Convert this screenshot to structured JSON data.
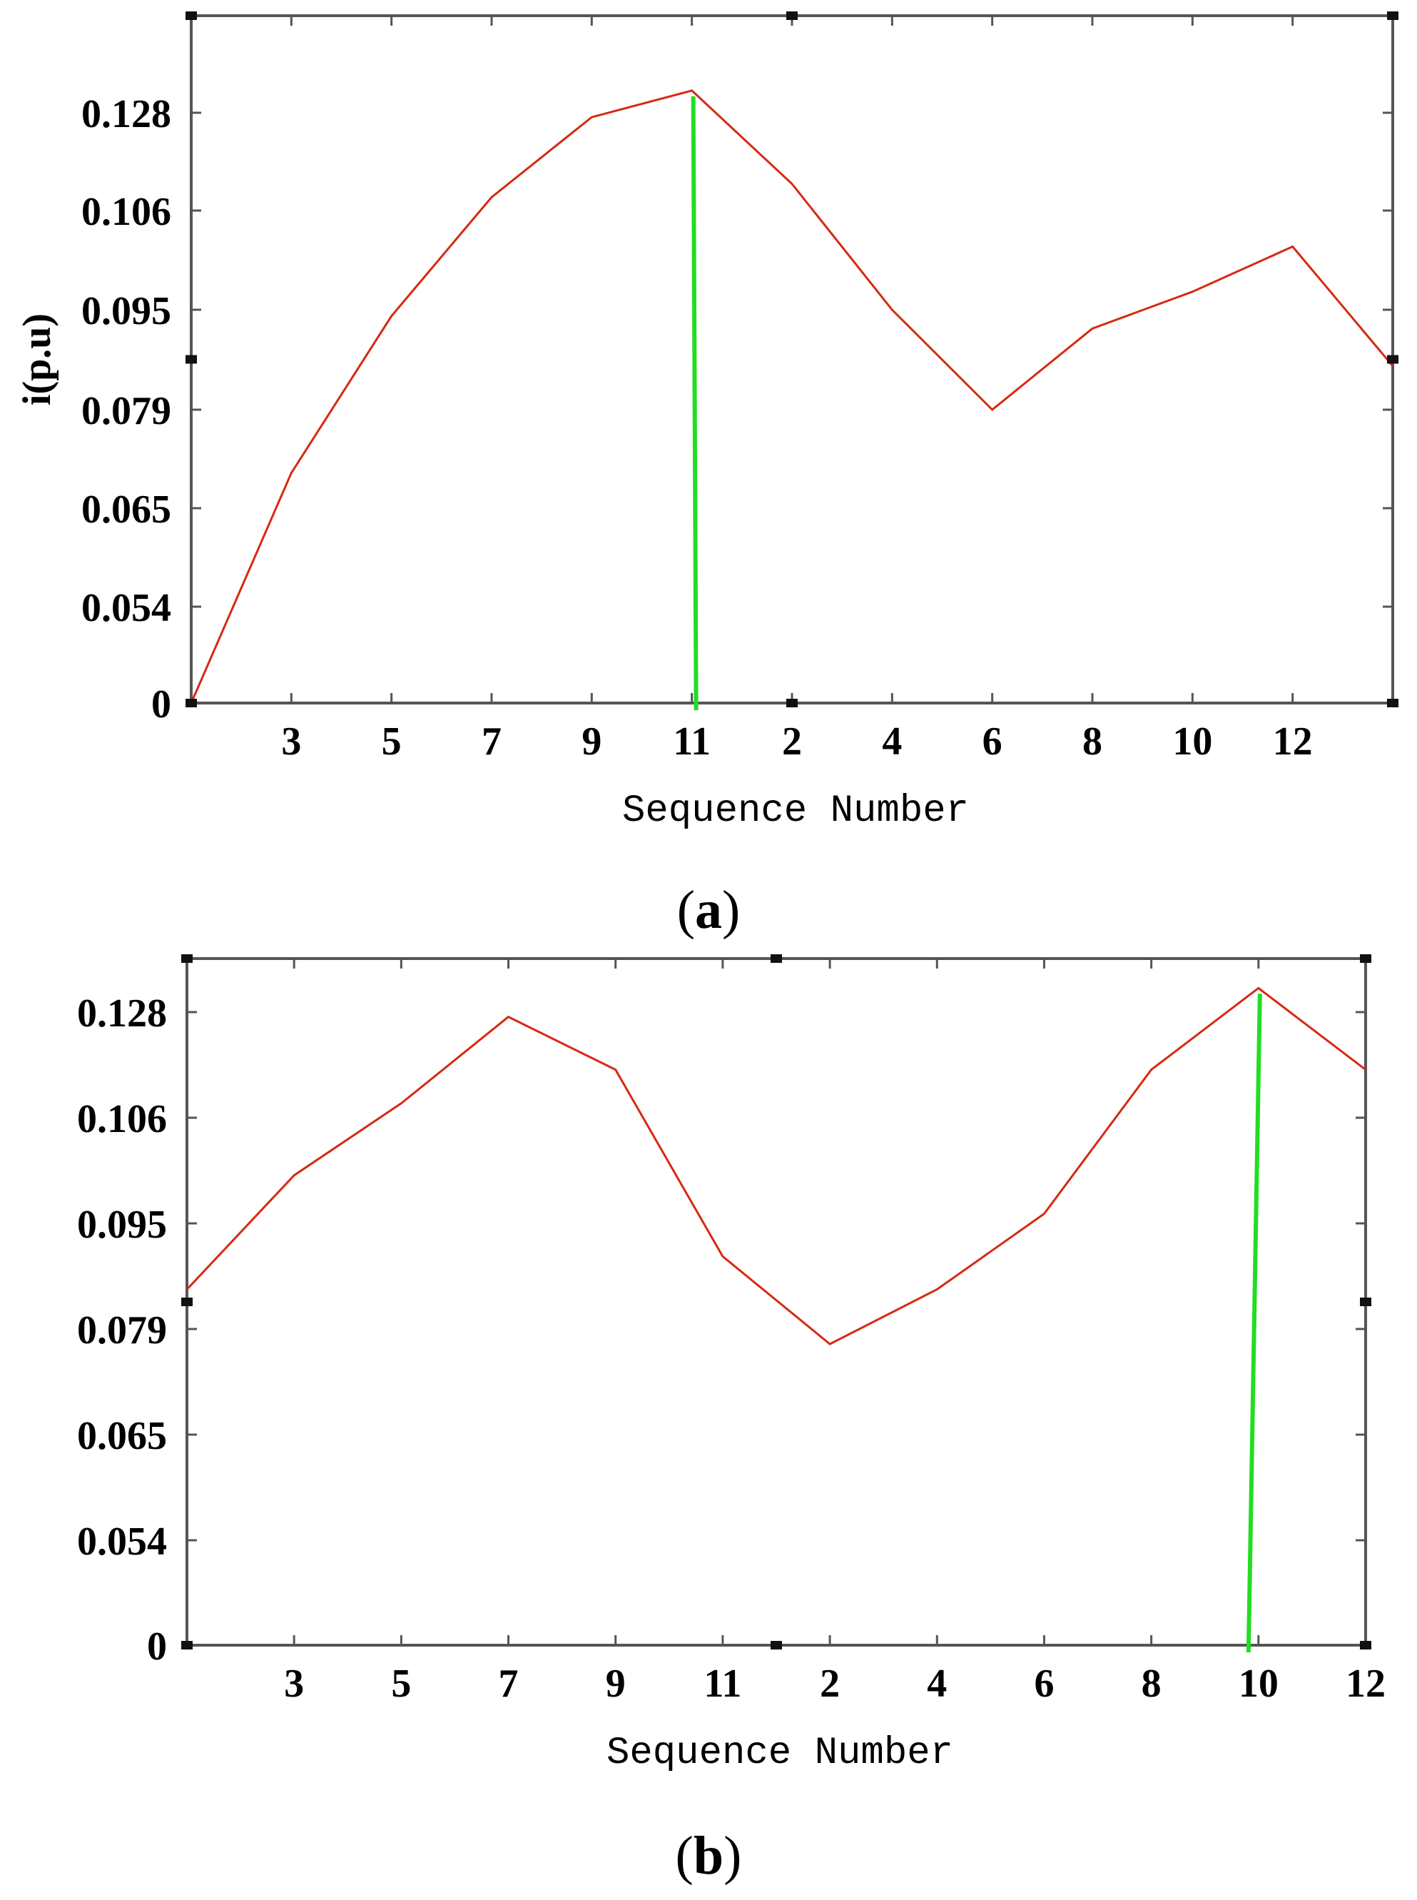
{
  "chart_data": [
    {
      "type": "line",
      "panel_label_open": "(",
      "panel_label_letter": "a",
      "panel_label_close": ")",
      "xlabel": "Sequence Number",
      "ylabel": "i(p.u)",
      "x_tick_labels": [
        "3",
        "5",
        "7",
        "9",
        "11",
        "2",
        "4",
        "6",
        "8",
        "10",
        "12"
      ],
      "y_tick_labels": [
        "0",
        "0.054",
        "0.065",
        "0.079",
        "0.095",
        "0.106",
        "0.128"
      ],
      "series_color": "#d62a12",
      "marker_color": "#22dd22",
      "frame_color": "#555555",
      "series": [
        {
          "y": [
            0.0,
            0.07,
            0.094,
            0.109,
            0.127,
            0.133,
            0.112,
            0.095,
            0.079,
            0.092,
            0.097,
            0.102,
            0.086
          ]
        }
      ],
      "marker_index": 5
    },
    {
      "type": "line",
      "panel_label_open": "(",
      "panel_label_letter": "b",
      "panel_label_close": ")",
      "xlabel": "Sequence Number",
      "x_tick_labels": [
        "3",
        "5",
        "7",
        "9",
        "11",
        "2",
        "4",
        "6",
        "8",
        "10",
        "12"
      ],
      "y_tick_labels": [
        "0",
        "0.054",
        "0.065",
        "0.079",
        "0.095",
        "0.106",
        "0.128"
      ],
      "series_color": "#d62a12",
      "marker_color": "#22dd22",
      "frame_color": "#555555",
      "series": [
        {
          "y": [
            0.085,
            0.1,
            0.109,
            0.127,
            0.116,
            0.09,
            0.077,
            0.085,
            0.096,
            0.116,
            0.133,
            0.116
          ]
        }
      ],
      "marker_index": 10
    }
  ]
}
